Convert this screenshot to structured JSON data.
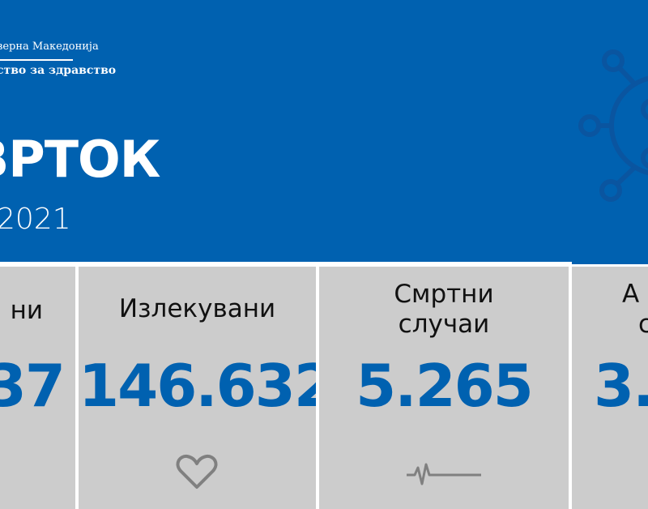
{
  "header": {
    "org_line1": "верна Македонија",
    "org_line2": "ство за здравство",
    "title": "ВРТОК",
    "date": "2021",
    "colors": {
      "brand": "#0061b0",
      "panel": "#cccccc"
    }
  },
  "panels": [
    {
      "label": "ни",
      "value": "37"
    },
    {
      "label": "Излекувани",
      "value": "146.632",
      "icon": "heart-icon"
    },
    {
      "label_line1": "Смртни",
      "label_line2": "случаи",
      "value": "5.265",
      "icon": "heartbeat-icon"
    },
    {
      "label_line1": "А",
      "label_line2": "с",
      "value": "3.0"
    }
  ]
}
